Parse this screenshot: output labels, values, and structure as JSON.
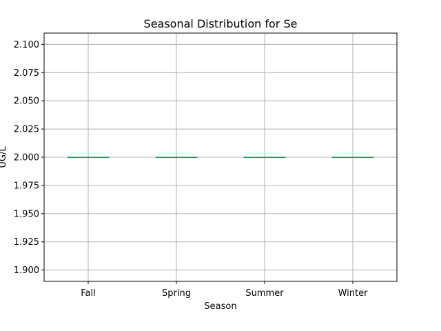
{
  "chart_data": {
    "type": "box",
    "title": "Seasonal Distribution for Se",
    "xlabel": "Season",
    "ylabel": "UG/L",
    "categories": [
      "Fall",
      "Spring",
      "Summer",
      "Winter"
    ],
    "boxes": [
      {
        "category": "Fall",
        "min": 2.0,
        "q1": 2.0,
        "median": 2.0,
        "q3": 2.0,
        "max": 2.0
      },
      {
        "category": "Spring",
        "min": 2.0,
        "q1": 2.0,
        "median": 2.0,
        "q3": 2.0,
        "max": 2.0
      },
      {
        "category": "Summer",
        "min": 2.0,
        "q1": 2.0,
        "median": 2.0,
        "q3": 2.0,
        "max": 2.0
      },
      {
        "category": "Winter",
        "min": 2.0,
        "q1": 2.0,
        "median": 2.0,
        "q3": 2.0,
        "max": 2.0
      }
    ],
    "ylim": [
      1.89,
      2.11
    ],
    "yticks": [
      "2.100",
      "2.075",
      "2.050",
      "2.025",
      "2.000",
      "1.975",
      "1.950",
      "1.925",
      "1.900"
    ],
    "grid": true,
    "colors": {
      "box": "#1f77b4",
      "median": "#2ca02c",
      "grid": "#b0b0b0",
      "axes": "#000000"
    }
  }
}
